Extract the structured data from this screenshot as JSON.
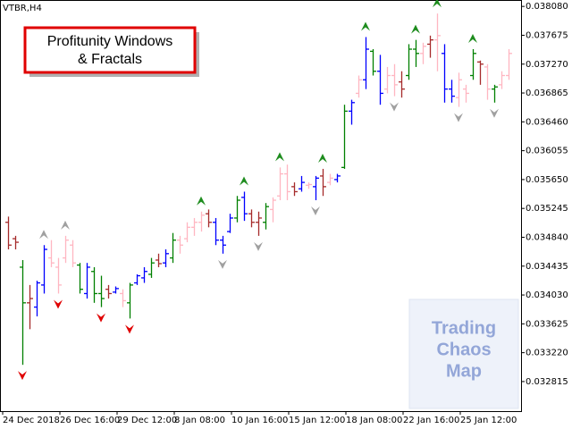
{
  "chart_data": {
    "type": "ohlc",
    "title": "VTBR,H4",
    "annotation": [
      "Profitunity Windows",
      "& Fractals"
    ],
    "watermark": [
      "Trading",
      "Chaos",
      "Map"
    ],
    "categories": [
      "24 Dec 2018",
      null,
      null,
      null,
      null,
      null,
      null,
      null,
      "26 Dec 16:00",
      null,
      null,
      null,
      null,
      null,
      null,
      null,
      "29 Dec 12:00",
      null,
      null,
      null,
      null,
      null,
      null,
      null,
      "8 Jan 08:00",
      null,
      null,
      null,
      null,
      null,
      null,
      null,
      "10 Jan 16:00",
      null,
      null,
      null,
      null,
      null,
      null,
      null,
      "15 Jan 12:00",
      null,
      null,
      null,
      null,
      null,
      null,
      null,
      "18 Jan 08:00",
      null,
      null,
      null,
      null,
      null,
      null,
      null,
      "22 Jan 16:00",
      null,
      null,
      null,
      null,
      null,
      null,
      null,
      "25 Jan 12:00",
      null,
      null,
      null,
      null,
      null,
      null
    ],
    "open": [
      0.03505,
      0.03482,
      0.03442,
      0.03392,
      0.03386,
      0.03417,
      0.03455,
      0.03442,
      0.03455,
      0.03473,
      0.03445,
      0.03405,
      0.03436,
      0.03405,
      0.03411,
      0.03407,
      0.03405,
      0.03392,
      0.0342,
      0.03427,
      0.03432,
      0.03452,
      0.03448,
      0.03455,
      0.0348,
      0.03482,
      0.03498,
      0.03505,
      0.03517,
      0.03505,
      0.0348,
      0.03492,
      0.03511,
      0.0354,
      0.03517,
      0.03505,
      0.03505,
      0.03523,
      0.03542,
      0.03573,
      0.03555,
      0.03552,
      0.03557,
      0.03555,
      0.0357,
      0.03561,
      0.03565,
      0.03582,
      0.03661,
      0.03686,
      0.03705,
      0.03745,
      0.03717,
      0.03692,
      0.03711,
      0.03702,
      0.03711,
      0.03748,
      0.03742,
      0.03755,
      0.03761,
      0.03742,
      0.03692,
      0.0368,
      0.03692,
      0.03711,
      0.0373,
      0.03723,
      0.03692,
      0.03698,
      0.03711
    ],
    "high": [
      0.03513,
      0.03486,
      0.03452,
      0.03417,
      0.03423,
      0.03473,
      0.0348,
      0.03455,
      0.03486,
      0.0348,
      0.03448,
      0.03448,
      0.03442,
      0.0343,
      0.03417,
      0.03415,
      0.03411,
      0.0342,
      0.03432,
      0.03442,
      0.03455,
      0.03461,
      0.03467,
      0.0349,
      0.03486,
      0.03505,
      0.03511,
      0.0352,
      0.03523,
      0.03511,
      0.03486,
      0.03517,
      0.03542,
      0.03548,
      0.03523,
      0.0352,
      0.03532,
      0.0354,
      0.03582,
      0.03586,
      0.03561,
      0.0357,
      0.03561,
      0.0357,
      0.0358,
      0.03573,
      0.03573,
      0.0367,
      0.03677,
      0.03711,
      0.03765,
      0.03748,
      0.0374,
      0.03723,
      0.03727,
      0.03717,
      0.03755,
      0.03761,
      0.03757,
      0.03767,
      0.03798,
      0.03755,
      0.03705,
      0.03715,
      0.03698,
      0.03748,
      0.03732,
      0.03727,
      0.03698,
      0.03717,
      0.03748
    ],
    "low": [
      0.03467,
      0.03467,
      0.03305,
      0.03355,
      0.03373,
      0.03405,
      0.03442,
      0.03405,
      0.03448,
      0.03442,
      0.03405,
      0.03398,
      0.03392,
      0.03386,
      0.03398,
      0.03405,
      0.03386,
      0.0337,
      0.03417,
      0.0342,
      0.03427,
      0.03442,
      0.03442,
      0.03448,
      0.03461,
      0.03477,
      0.03486,
      0.03492,
      0.03498,
      0.03473,
      0.03461,
      0.0349,
      0.03505,
      0.03507,
      0.03498,
      0.03486,
      0.03495,
      0.03505,
      0.03536,
      0.03536,
      0.03542,
      0.03548,
      0.03552,
      0.03536,
      0.03542,
      0.03557,
      0.03561,
      0.0358,
      0.03642,
      0.0368,
      0.03692,
      0.03711,
      0.0367,
      0.03686,
      0.03682,
      0.0368,
      0.03705,
      0.03723,
      0.03727,
      0.03736,
      0.03717,
      0.03673,
      0.03673,
      0.03667,
      0.03673,
      0.03705,
      0.03698,
      0.03677,
      0.03673,
      0.03692,
      0.03705
    ],
    "close": [
      0.03473,
      0.03477,
      0.03392,
      0.03398,
      0.0342,
      0.03467,
      0.03448,
      0.03417,
      0.0348,
      0.03448,
      0.03411,
      0.03442,
      0.03405,
      0.03398,
      0.03405,
      0.03412,
      0.03395,
      0.03417,
      0.0343,
      0.03436,
      0.03448,
      0.03447,
      0.03461,
      0.0348,
      0.03473,
      0.03498,
      0.03505,
      0.03515,
      0.03505,
      0.0348,
      0.03473,
      0.03511,
      0.03536,
      0.03517,
      0.03505,
      0.03511,
      0.03527,
      0.03536,
      0.03573,
      0.03548,
      0.03548,
      0.03561,
      0.03558,
      0.03567,
      0.03555,
      0.03567,
      0.0357,
      0.03661,
      0.03673,
      0.03705,
      0.03748,
      0.03717,
      0.03686,
      0.03711,
      0.03698,
      0.03692,
      0.03748,
      0.03742,
      0.03752,
      0.03761,
      0.03767,
      0.03692,
      0.03682,
      0.03705,
      0.03686,
      0.03742,
      0.03727,
      0.03692,
      0.03695,
      0.03711,
      0.03742
    ],
    "colors": [
      "#a52a2a",
      "#a52a2a",
      "#008000",
      "#a52a2a",
      "#0000ff",
      "#0000ff",
      "#ffb6c1",
      "#ffb6c1",
      "#ffb6c1",
      "#ffb6c1",
      "#008000",
      "#0000ff",
      "#008000",
      "#008000",
      "#a52a2a",
      "#0000ff",
      "#ffb6c1",
      "#008000",
      "#0000ff",
      "#0000ff",
      "#008000",
      "#a52a2a",
      "#0000ff",
      "#008000",
      "#ffb6c1",
      "#ffb6c1",
      "#ffb6c1",
      "#ffb6c1",
      "#a52a2a",
      "#0000ff",
      "#0000ff",
      "#0000ff",
      "#008000",
      "#0000ff",
      "#a52a2a",
      "#a52a2a",
      "#008000",
      "#ffb6c1",
      "#ffb6c1",
      "#ffb6c1",
      "#a52a2a",
      "#0000ff",
      "#ffb6c1",
      "#0000ff",
      "#a52a2a",
      "#ffb6c1",
      "#0000ff",
      "#008000",
      "#0000ff",
      "#ffb6c1",
      "#0000ff",
      "#008000",
      "#0000ff",
      "#ffb6c1",
      "#ffb6c1",
      "#a52a2a",
      "#008000",
      "#008000",
      "#ffb6c1",
      "#a52a2a",
      "#ffb6c1",
      "#0000ff",
      "#0000ff",
      "#ffb6c1",
      "#ffb6c1",
      "#008000",
      "#a52a2a",
      "#ffb6c1",
      "#008000",
      "#ffb6c1",
      "#ffb6c1"
    ],
    "fractal_up": [
      null,
      null,
      null,
      null,
      null,
      0.03473,
      null,
      null,
      0.03486,
      null,
      null,
      null,
      null,
      null,
      null,
      null,
      null,
      null,
      null,
      null,
      null,
      null,
      null,
      null,
      null,
      null,
      null,
      0.0352,
      null,
      null,
      null,
      null,
      null,
      0.03548,
      null,
      null,
      null,
      null,
      0.03582,
      null,
      null,
      null,
      null,
      null,
      0.0358,
      null,
      null,
      null,
      null,
      null,
      0.03765,
      null,
      null,
      null,
      null,
      null,
      null,
      0.03761,
      null,
      null,
      0.03798,
      null,
      null,
      null,
      null,
      0.03748,
      null,
      null,
      null,
      null,
      null
    ],
    "fractal_up_colors": [
      null,
      null,
      null,
      null,
      null,
      "#a0a0a0",
      null,
      null,
      "#a0a0a0",
      null,
      null,
      null,
      null,
      null,
      null,
      null,
      null,
      null,
      null,
      null,
      null,
      null,
      null,
      null,
      null,
      null,
      null,
      "#1e8c1e",
      null,
      null,
      null,
      null,
      null,
      "#1e8c1e",
      null,
      null,
      null,
      null,
      "#1e8c1e",
      null,
      null,
      null,
      null,
      null,
      "#1e8c1e",
      null,
      null,
      null,
      null,
      null,
      "#1e8c1e",
      null,
      null,
      null,
      null,
      null,
      null,
      "#1e8c1e",
      null,
      null,
      "#1e8c1e",
      null,
      null,
      null,
      null,
      "#1e8c1e",
      null,
      null,
      null,
      null,
      null
    ],
    "fractal_down": [
      null,
      null,
      0.03305,
      null,
      null,
      null,
      null,
      0.03405,
      null,
      null,
      null,
      null,
      null,
      0.03386,
      null,
      null,
      null,
      0.0337,
      null,
      null,
      null,
      null,
      null,
      null,
      null,
      null,
      null,
      null,
      null,
      null,
      0.03461,
      null,
      null,
      null,
      null,
      0.03486,
      null,
      null,
      null,
      null,
      null,
      null,
      null,
      0.03536,
      null,
      null,
      null,
      null,
      null,
      null,
      null,
      null,
      null,
      null,
      0.03682,
      null,
      null,
      null,
      null,
      null,
      null,
      null,
      null,
      0.03667,
      null,
      null,
      null,
      null,
      0.03673,
      null,
      null
    ],
    "fractal_down_colors": [
      null,
      null,
      "#e00000",
      null,
      null,
      null,
      null,
      "#e00000",
      null,
      null,
      null,
      null,
      null,
      "#e00000",
      null,
      null,
      null,
      "#e00000",
      null,
      null,
      null,
      null,
      null,
      null,
      null,
      null,
      null,
      null,
      null,
      null,
      "#a0a0a0",
      null,
      null,
      null,
      null,
      "#a0a0a0",
      null,
      null,
      null,
      null,
      null,
      null,
      null,
      "#a0a0a0",
      null,
      null,
      null,
      null,
      null,
      null,
      null,
      null,
      null,
      null,
      "#a0a0a0",
      null,
      null,
      null,
      null,
      null,
      null,
      null,
      null,
      "#a0a0a0",
      null,
      null,
      null,
      null,
      "#a0a0a0",
      null,
      null
    ],
    "ylim": [
      0.0324,
      0.03817
    ],
    "yticks": [
      {
        "value": 0.03808,
        "label": "0.038080"
      },
      0.037675,
      {
        "value": 0.03727,
        "label": "0.037270"
      },
      0.036865,
      {
        "value": 0.03646,
        "label": "0.036460"
      },
      0.036055,
      {
        "value": 0.03565,
        "label": "0.035650"
      },
      0.035245,
      {
        "value": 0.03484,
        "label": "0.034840"
      },
      0.034435,
      {
        "value": 0.03403,
        "label": "0.034030"
      },
      0.033625,
      {
        "value": 0.03322,
        "label": "0.033220"
      },
      0.032815
    ],
    "grid": false
  }
}
